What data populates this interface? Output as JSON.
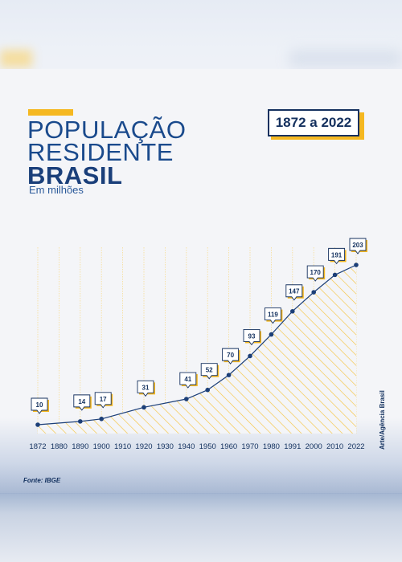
{
  "header": {
    "title_line1": "POPULAÇÃO",
    "title_line2": "RESIDENTE",
    "title_line3": "BRASIL",
    "subtitle": "Em milhões",
    "range": "1872 a 2022"
  },
  "footer": {
    "source": "Fonte: IBGE",
    "credit": "Arte/Agência Brasil"
  },
  "colors": {
    "accent": "#f5b821",
    "navy": "#1a4a8c",
    "line": "#1c3f78"
  },
  "chart_data": {
    "type": "line",
    "x": [
      1872,
      1890,
      1900,
      1920,
      1940,
      1950,
      1960,
      1970,
      1980,
      1991,
      2000,
      2010,
      2022
    ],
    "values": [
      10,
      14,
      17,
      31,
      41,
      52,
      70,
      93,
      119,
      147,
      170,
      191,
      203
    ],
    "x_tick_labels": [
      "1872",
      "1880",
      "1890",
      "1900",
      "1910",
      "1920",
      "1930",
      "1940",
      "1950",
      "1960",
      "1970",
      "1980",
      "1991",
      "2000",
      "2010",
      "2022"
    ],
    "ylim": [
      0,
      210
    ],
    "grid": "vertical",
    "fill": "hatched area under line"
  }
}
